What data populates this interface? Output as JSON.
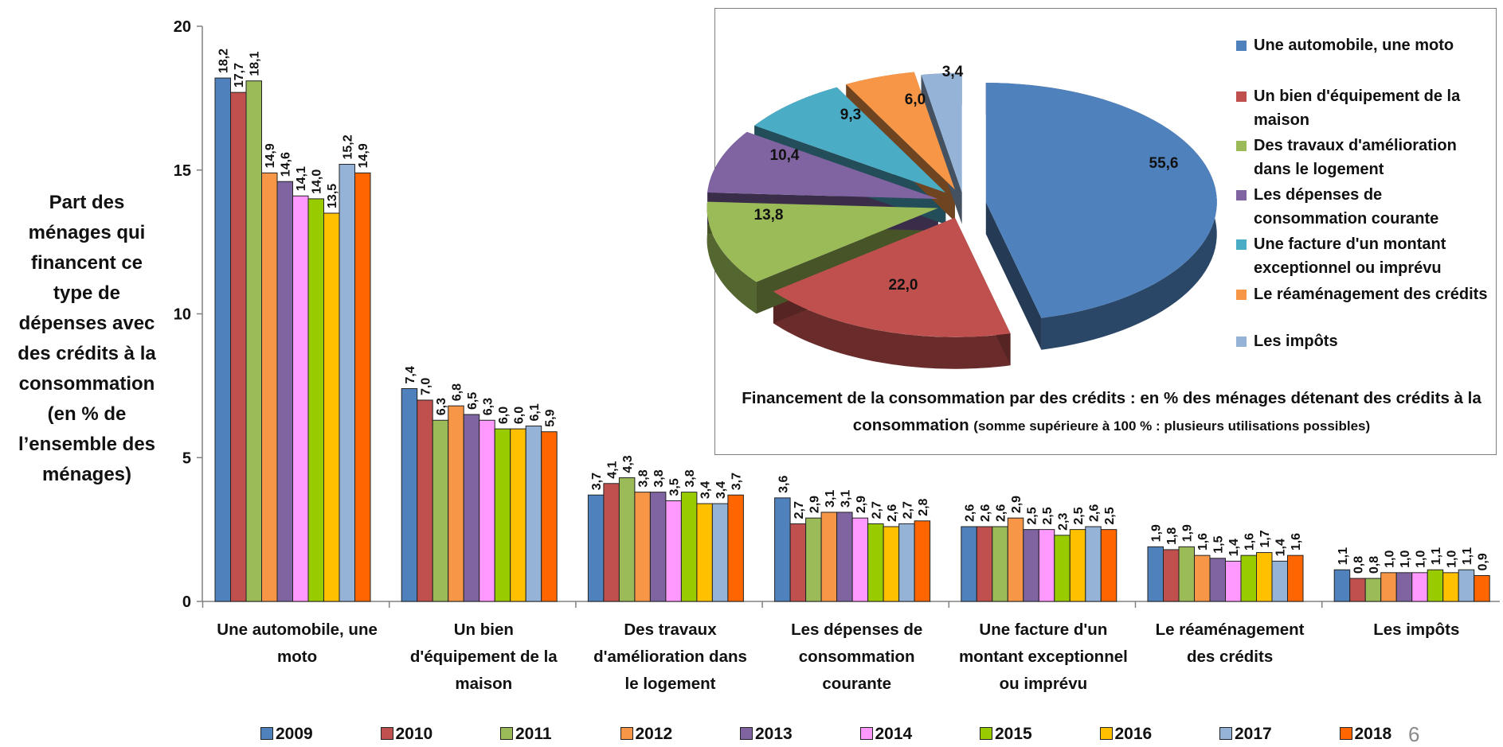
{
  "y_axis_title_lines": [
    "Part des",
    "ménages qui",
    "financent ce",
    "type de",
    "dépenses avec",
    "des crédits à la",
    "consommation",
    "(en % de",
    "l’ensemble des",
    "ménages)"
  ],
  "chart_data": [
    {
      "type": "bar",
      "title": "",
      "ylabel": "Part des ménages qui financent ce type de dépenses avec des crédits à la consommation (en % de l’ensemble des ménages)",
      "ylim": [
        0,
        20
      ],
      "yticks": [
        0,
        5,
        10,
        15,
        20
      ],
      "grid": false,
      "legend_position": "bottom",
      "categories": [
        [
          "Une automobile, une",
          "moto"
        ],
        [
          "Un bien",
          "d'équipement de la",
          "maison"
        ],
        [
          "Des travaux",
          "d'amélioration dans",
          "le logement"
        ],
        [
          "Les dépenses de",
          "consommation",
          "courante"
        ],
        [
          "Une facture d'un",
          "montant exceptionnel",
          "ou imprévu"
        ],
        [
          "Le réaménagement",
          "des crédits"
        ],
        [
          "Les impôts"
        ]
      ],
      "series": [
        {
          "name": "2009",
          "color": "#4f81bd",
          "values": [
            18.2,
            7.4,
            3.7,
            3.6,
            2.6,
            1.9,
            1.1
          ],
          "labels": [
            "18,2",
            "7,4",
            "3,7",
            "3,6",
            "2,6",
            "1,9",
            "1,1"
          ]
        },
        {
          "name": "2010",
          "color": "#c0504d",
          "values": [
            17.7,
            7.0,
            4.1,
            2.7,
            2.6,
            1.8,
            0.8
          ],
          "labels": [
            "17,7",
            "7,0",
            "4,1",
            "2,7",
            "2,6",
            "1,8",
            "0,8"
          ]
        },
        {
          "name": "2011",
          "color": "#9bbb59",
          "values": [
            18.1,
            6.3,
            4.3,
            2.9,
            2.6,
            1.9,
            0.8
          ],
          "labels": [
            "18,1",
            "6,3",
            "4,3",
            "2,9",
            "2,6",
            "1,9",
            "0,8"
          ]
        },
        {
          "name": "2012",
          "color": "#f79646",
          "values": [
            14.9,
            6.8,
            3.8,
            3.1,
            2.9,
            1.6,
            1.0
          ],
          "labels": [
            "14,9",
            "6,8",
            "3,8",
            "3,1",
            "2,9",
            "1,6",
            "1,0"
          ]
        },
        {
          "name": "2013",
          "color": "#8064a2",
          "values": [
            14.6,
            6.5,
            3.8,
            3.1,
            2.5,
            1.5,
            1.0
          ],
          "labels": [
            "14,6",
            "6,5",
            "3,8",
            "3,1",
            "2,5",
            "1,5",
            "1,0"
          ]
        },
        {
          "name": "2014",
          "color": "#ff99ff",
          "values": [
            14.1,
            6.3,
            3.5,
            2.9,
            2.5,
            1.4,
            1.0
          ],
          "labels": [
            "14,1",
            "6,3",
            "3,5",
            "2,9",
            "2,5",
            "1,4",
            "1,0"
          ]
        },
        {
          "name": "2015",
          "color": "#99cc00",
          "values": [
            14.0,
            6.0,
            3.8,
            2.7,
            2.3,
            1.6,
            1.1
          ],
          "labels": [
            "14,0",
            "6,0",
            "3,8",
            "2,7",
            "2,3",
            "1,6",
            "1,1"
          ]
        },
        {
          "name": "2016",
          "color": "#ffc000",
          "values": [
            13.5,
            6.0,
            3.4,
            2.6,
            2.5,
            1.7,
            1.0
          ],
          "labels": [
            "13,5",
            "6,0",
            "3,4",
            "2,6",
            "2,5",
            "1,7",
            "1,0"
          ]
        },
        {
          "name": "2017",
          "color": "#95b3d7",
          "values": [
            15.2,
            6.1,
            3.4,
            2.7,
            2.6,
            1.4,
            1.1
          ],
          "labels": [
            "15,2",
            "6,1",
            "3,4",
            "2,7",
            "2,6",
            "1,4",
            "1,1"
          ]
        },
        {
          "name": "2018",
          "color": "#ff6600",
          "values": [
            14.9,
            5.9,
            3.7,
            2.8,
            2.5,
            1.6,
            0.9
          ],
          "labels": [
            "14,9",
            "5,9",
            "3,7",
            "2,8",
            "2,5",
            "1,6",
            "0,9"
          ]
        }
      ]
    },
    {
      "type": "pie",
      "title": "Financement de la consommation par des crédits : en % des ménages détenant des crédits à la consommation",
      "title_note": "(somme supérieure à 100 % : plusieurs utilisations possibles)",
      "legend_position": "right",
      "slices": [
        {
          "label": "Une automobile, une moto",
          "value": 55.6,
          "display": "55,6",
          "color": "#4f81bd"
        },
        {
          "label": "Un bien d'équipement de la maison",
          "value": 22.0,
          "display": "22,0",
          "color": "#c0504d"
        },
        {
          "label": "Des travaux d'amélioration dans le logement",
          "value": 13.8,
          "display": "13,8",
          "color": "#9bbb59"
        },
        {
          "label": "Les dépenses de consommation courante",
          "value": 10.4,
          "display": "10,4",
          "color": "#8064a2"
        },
        {
          "label": "Une facture d'un montant exceptionnel ou imprévu",
          "value": 9.3,
          "display": "9,3",
          "color": "#4bacc6"
        },
        {
          "label": "Le réaménagement des crédits",
          "value": 6.0,
          "display": "6,0",
          "color": "#f79646"
        },
        {
          "label": "Les impôts",
          "value": 3.4,
          "display": "3,4",
          "color": "#95b3d7"
        }
      ],
      "legend_lines": [
        [
          "Une automobile, une moto"
        ],
        [
          "Un bien d'équipement de la",
          "maison"
        ],
        [
          "Des travaux d'amélioration",
          "dans le logement"
        ],
        [
          "Les dépenses de",
          "consommation courante"
        ],
        [
          "Une facture d'un montant",
          "exceptionnel ou imprévu"
        ],
        [
          "Le réaménagement des crédits"
        ],
        [
          "Les impôts"
        ]
      ]
    }
  ],
  "page_number": "6"
}
